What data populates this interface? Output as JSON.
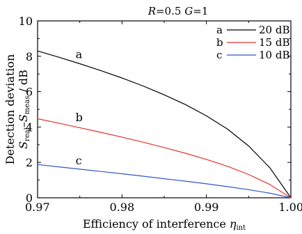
{
  "chart_data": {
    "type": "line",
    "title_parts": {
      "R_label": "R",
      "R_value": "=0.5 ",
      "G_label": "G",
      "G_value": "=1"
    },
    "xlabel_parts": {
      "main": "Efficiency of interference ",
      "sym": "η",
      "sub": "int"
    },
    "ylabel_line1": "Detection deviation",
    "ylabel_parts": {
      "s1": "S",
      "sub1": "real",
      "minus": "–",
      "s2": "S",
      "sub2": "meas",
      "unit": " / dB"
    },
    "xlim": [
      0.97,
      1.0
    ],
    "ylim": [
      0,
      10
    ],
    "x_ticks": [
      "0.97",
      "0.98",
      "0.99",
      "1.00"
    ],
    "y_ticks": [
      "0",
      "2",
      "4",
      "6",
      "8",
      "10"
    ],
    "x": [
      0.97,
      0.9725,
      0.975,
      0.9775,
      0.98,
      0.9825,
      0.985,
      0.9875,
      0.99,
      0.9925,
      0.995,
      0.9975,
      1.0
    ],
    "series": [
      {
        "name": "20 dB",
        "id": "a",
        "label": "a",
        "color": "#000000",
        "values": [
          8.3,
          7.95,
          7.58,
          7.19,
          6.77,
          6.32,
          5.82,
          5.27,
          4.63,
          3.88,
          2.93,
          1.7,
          0.0
        ]
      },
      {
        "name": "15 dB",
        "id": "b",
        "label": "b",
        "color": "#e8302a",
        "values": [
          4.47,
          4.22,
          3.96,
          3.7,
          3.43,
          3.14,
          2.84,
          2.52,
          2.17,
          1.78,
          1.32,
          0.75,
          0.0
        ]
      },
      {
        "name": "10 dB",
        "id": "c",
        "label": "c",
        "color": "#2f56c8",
        "values": [
          1.88,
          1.75,
          1.62,
          1.49,
          1.36,
          1.22,
          1.08,
          0.94,
          0.79,
          0.63,
          0.46,
          0.26,
          0.0
        ]
      }
    ],
    "legend": {
      "placement": "top-right"
    },
    "grid": false
  }
}
